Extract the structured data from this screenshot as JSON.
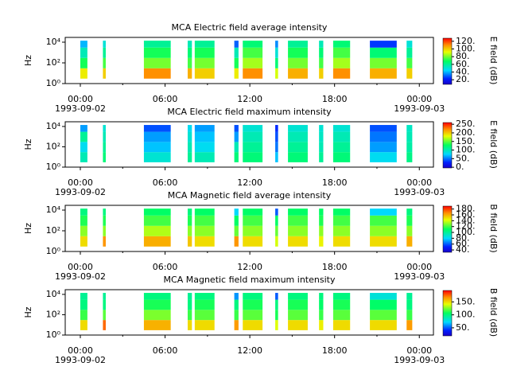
{
  "chart_data": [
    {
      "type": "heatmap",
      "title": "MCA  Electric field average intensity",
      "ylabel": "Hz",
      "yscale": "log",
      "colormap": "rainbow",
      "xlim": [
        -1.07,
        25
      ],
      "ylim": [
        1,
        29000
      ],
      "xticks": [
        {
          "value": 0,
          "label": "00:00"
        },
        {
          "value": 6,
          "label": "06:00"
        },
        {
          "value": 12,
          "label": "12:00"
        },
        {
          "value": 18,
          "label": "18:00"
        },
        {
          "value": 24,
          "label": "00:00"
        }
      ],
      "xminorticks": [
        3,
        9,
        15,
        21
      ],
      "xdate_labels": [
        {
          "value": 0,
          "label": "1993-09-02"
        },
        {
          "value": 24,
          "label": "1993-09-03"
        }
      ],
      "yticks": [
        {
          "value": 1,
          "label": "10⁰"
        },
        {
          "value": 100,
          "label": "10²"
        },
        {
          "value": 10000,
          "label": "10⁴"
        }
      ],
      "x_segments": [
        [
          0.0,
          0.5
        ],
        [
          1.6,
          1.8
        ],
        [
          4.5,
          6.4
        ],
        [
          7.6,
          7.9
        ],
        [
          8.1,
          9.5
        ],
        [
          10.9,
          11.2
        ],
        [
          11.5,
          12.9
        ],
        [
          13.8,
          14.0
        ],
        [
          14.7,
          16.1
        ],
        [
          16.9,
          17.2
        ],
        [
          17.9,
          19.1
        ],
        [
          20.5,
          22.4
        ],
        [
          23.1,
          23.5
        ]
      ],
      "y_bins": [
        3,
        30,
        300,
        3000,
        14000
      ],
      "values": [
        [
          95,
          70,
          55,
          40
        ],
        [
          100,
          75,
          60,
          50
        ],
        [
          110,
          80,
          70,
          60
        ],
        [
          105,
          75,
          65,
          55
        ],
        [
          100,
          80,
          70,
          60
        ],
        [
          95,
          70,
          55,
          30
        ],
        [
          110,
          85,
          75,
          65
        ],
        [
          90,
          65,
          50,
          35
        ],
        [
          105,
          80,
          70,
          60
        ],
        [
          100,
          75,
          65,
          55
        ],
        [
          110,
          85,
          75,
          65
        ],
        [
          105,
          80,
          65,
          25
        ],
        [
          100,
          75,
          60,
          50
        ]
      ],
      "colorbar": {
        "label": "E field (dB)",
        "lim": [
          8,
          128
        ],
        "ticks": [
          {
            "value": 20,
            "label": "20."
          },
          {
            "value": 40,
            "label": "40."
          },
          {
            "value": 60,
            "label": "60."
          },
          {
            "value": 80,
            "label": "80."
          },
          {
            "value": 100,
            "label": "100."
          },
          {
            "value": 120,
            "label": "120."
          }
        ]
      }
    },
    {
      "type": "heatmap",
      "title": "MCA  Electric field maximum intensity",
      "ylabel": "Hz",
      "yscale": "log",
      "colormap": "rainbow",
      "xlim": [
        -1.07,
        25
      ],
      "ylim": [
        1,
        29000
      ],
      "xticks": [
        {
          "value": 0,
          "label": "00:00"
        },
        {
          "value": 6,
          "label": "06:00"
        },
        {
          "value": 12,
          "label": "12:00"
        },
        {
          "value": 18,
          "label": "18:00"
        },
        {
          "value": 24,
          "label": "00:00"
        }
      ],
      "xminorticks": [
        3,
        9,
        15,
        21
      ],
      "xdate_labels": [
        {
          "value": 0,
          "label": "1993-09-02"
        },
        {
          "value": 24,
          "label": "1993-09-03"
        }
      ],
      "yticks": [
        {
          "value": 1,
          "label": "10⁰"
        },
        {
          "value": 100,
          "label": "10²"
        },
        {
          "value": 10000,
          "label": "10⁴"
        }
      ],
      "x_segments": [
        [
          0.0,
          0.5
        ],
        [
          1.6,
          1.8
        ],
        [
          4.5,
          6.4
        ],
        [
          7.6,
          7.9
        ],
        [
          8.1,
          9.5
        ],
        [
          10.9,
          11.2
        ],
        [
          11.5,
          12.9
        ],
        [
          13.8,
          14.0
        ],
        [
          14.7,
          16.1
        ],
        [
          16.9,
          17.2
        ],
        [
          17.9,
          19.1
        ],
        [
          20.5,
          22.4
        ],
        [
          23.1,
          23.5
        ]
      ],
      "y_bins": [
        3,
        30,
        300,
        3000,
        14000
      ],
      "values": [
        [
          100,
          80,
          110,
          60
        ],
        [
          120,
          110,
          100,
          90
        ],
        [
          90,
          70,
          60,
          40
        ],
        [
          110,
          100,
          90,
          80
        ],
        [
          100,
          80,
          70,
          60
        ],
        [
          120,
          100,
          60,
          40
        ],
        [
          120,
          110,
          100,
          90
        ],
        [
          70,
          50,
          40,
          30
        ],
        [
          120,
          110,
          100,
          90
        ],
        [
          110,
          100,
          95,
          90
        ],
        [
          120,
          110,
          100,
          90
        ],
        [
          80,
          60,
          50,
          40
        ],
        [
          115,
          105,
          100,
          95
        ]
      ],
      "colorbar": {
        "label": "E field (dB)",
        "lim": [
          -4,
          260
        ],
        "ticks": [
          {
            "value": 0,
            "label": "0."
          },
          {
            "value": 50,
            "label": "50."
          },
          {
            "value": 100,
            "label": "100."
          },
          {
            "value": 150,
            "label": "150."
          },
          {
            "value": 200,
            "label": "200."
          },
          {
            "value": 250,
            "label": "250."
          }
        ]
      }
    },
    {
      "type": "heatmap",
      "title": "MCA  Magnetic field average intensity",
      "ylabel": "Hz",
      "yscale": "log",
      "colormap": "rainbow",
      "xlim": [
        -1.07,
        25
      ],
      "ylim": [
        1,
        29000
      ],
      "xticks": [
        {
          "value": 0,
          "label": "00:00"
        },
        {
          "value": 6,
          "label": "06:00"
        },
        {
          "value": 12,
          "label": "12:00"
        },
        {
          "value": 18,
          "label": "18:00"
        },
        {
          "value": 24,
          "label": "00:00"
        }
      ],
      "xminorticks": [
        3,
        9,
        15,
        21
      ],
      "xdate_labels": [
        {
          "value": 0,
          "label": "1993-09-02"
        },
        {
          "value": 24,
          "label": "1993-09-03"
        }
      ],
      "yticks": [
        {
          "value": 1,
          "label": "10⁰"
        },
        {
          "value": 100,
          "label": "10²"
        },
        {
          "value": 10000,
          "label": "10⁴"
        }
      ],
      "x_segments": [
        [
          0.0,
          0.5
        ],
        [
          1.6,
          1.8
        ],
        [
          4.5,
          6.4
        ],
        [
          7.6,
          7.9
        ],
        [
          8.1,
          9.5
        ],
        [
          10.9,
          11.2
        ],
        [
          11.5,
          12.9
        ],
        [
          13.8,
          14.0
        ],
        [
          14.7,
          16.1
        ],
        [
          16.9,
          17.2
        ],
        [
          17.9,
          19.1
        ],
        [
          20.5,
          22.4
        ],
        [
          23.1,
          23.5
        ]
      ],
      "y_bins": [
        3,
        30,
        300,
        3000,
        14000
      ],
      "values": [
        [
          150,
          130,
          115,
          105
        ],
        [
          165,
          130,
          115,
          105
        ],
        [
          160,
          135,
          120,
          110
        ],
        [
          155,
          130,
          115,
          105
        ],
        [
          150,
          130,
          120,
          110
        ],
        [
          165,
          125,
          110,
          80
        ],
        [
          150,
          130,
          120,
          110
        ],
        [
          140,
          125,
          110,
          60
        ],
        [
          150,
          130,
          120,
          110
        ],
        [
          145,
          130,
          115,
          110
        ],
        [
          150,
          130,
          120,
          110
        ],
        [
          150,
          130,
          120,
          80
        ],
        [
          160,
          130,
          115,
          105
        ]
      ],
      "colorbar": {
        "label": "B field (dB)",
        "lim": [
          32,
          190
        ],
        "ticks": [
          {
            "value": 40,
            "label": "40."
          },
          {
            "value": 60,
            "label": "60."
          },
          {
            "value": 80,
            "label": "80."
          },
          {
            "value": 100,
            "label": "100."
          },
          {
            "value": 120,
            "label": "120."
          },
          {
            "value": 140,
            "label": "140."
          },
          {
            "value": 160,
            "label": "160."
          },
          {
            "value": 180,
            "label": "180."
          }
        ]
      }
    },
    {
      "type": "heatmap",
      "title": "MCA  Magnetic field maximum intensity",
      "ylabel": "Hz",
      "yscale": "log",
      "colormap": "rainbow",
      "xlim": [
        -1.07,
        25
      ],
      "ylim": [
        1,
        29000
      ],
      "xticks": [
        {
          "value": 0,
          "label": "00:00"
        },
        {
          "value": 6,
          "label": "06:00"
        },
        {
          "value": 12,
          "label": "12:00"
        },
        {
          "value": 18,
          "label": "18:00"
        },
        {
          "value": 24,
          "label": "00:00"
        }
      ],
      "xminorticks": [
        3,
        9,
        15,
        21
      ],
      "xdate_labels": [
        {
          "value": 0,
          "label": "1993-09-02"
        },
        {
          "value": 24,
          "label": "1993-09-03"
        }
      ],
      "yticks": [
        {
          "value": 1,
          "label": "10⁰"
        },
        {
          "value": 100,
          "label": "10²"
        },
        {
          "value": 10000,
          "label": "10⁴"
        }
      ],
      "x_segments": [
        [
          0.0,
          0.5
        ],
        [
          1.6,
          1.8
        ],
        [
          4.5,
          6.4
        ],
        [
          7.6,
          7.9
        ],
        [
          8.1,
          9.5
        ],
        [
          10.9,
          11.2
        ],
        [
          11.5,
          12.9
        ],
        [
          13.8,
          14.0
        ],
        [
          14.7,
          16.1
        ],
        [
          16.9,
          17.2
        ],
        [
          17.9,
          19.1
        ],
        [
          20.5,
          22.4
        ],
        [
          23.1,
          23.5
        ]
      ],
      "y_bins": [
        3,
        30,
        300,
        3000,
        14000
      ],
      "values": [
        [
          150,
          115,
          100,
          95
        ],
        [
          175,
          120,
          100,
          95
        ],
        [
          160,
          125,
          110,
          100
        ],
        [
          150,
          115,
          100,
          95
        ],
        [
          150,
          120,
          110,
          100
        ],
        [
          165,
          115,
          100,
          60
        ],
        [
          150,
          120,
          110,
          100
        ],
        [
          140,
          110,
          100,
          50
        ],
        [
          150,
          120,
          110,
          100
        ],
        [
          145,
          115,
          105,
          100
        ],
        [
          150,
          120,
          110,
          100
        ],
        [
          150,
          120,
          105,
          80
        ],
        [
          165,
          115,
          100,
          95
        ]
      ],
      "colorbar": {
        "label": "B field (dB)",
        "lim": [
          19,
          194
        ],
        "ticks": [
          {
            "value": 50,
            "label": "50."
          },
          {
            "value": 100,
            "label": "100."
          },
          {
            "value": 150,
            "label": "150."
          }
        ]
      }
    }
  ]
}
